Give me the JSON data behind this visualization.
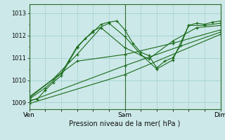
{
  "title": "",
  "xlabel": "Pression niveau de la mer( hPa )",
  "ylim": [
    1008.7,
    1013.4
  ],
  "yticks": [
    1009,
    1010,
    1011,
    1012,
    1013
  ],
  "xtick_labels": [
    "Ven",
    "Sam",
    "Dim"
  ],
  "xtick_positions": [
    0,
    48,
    96
  ],
  "x_total": 96,
  "bg_color": "#cce8e8",
  "grid_color": "#99cccc",
  "line_color": "#1a6b1a",
  "marker_color": "#1a6b1a",
  "lines": [
    [
      0,
      1009.1,
      4,
      1009.15,
      8,
      1009.55,
      12,
      1009.9,
      16,
      1010.2,
      20,
      1010.85,
      24,
      1011.45,
      28,
      1011.85,
      32,
      1012.15,
      36,
      1012.5,
      40,
      1012.6,
      44,
      1012.65,
      48,
      1012.25,
      52,
      1011.65,
      56,
      1011.25,
      60,
      1011.1,
      64,
      1010.55,
      68,
      1010.85,
      72,
      1011.0,
      76,
      1011.55,
      80,
      1012.45,
      84,
      1012.55,
      88,
      1012.5,
      92,
      1012.6,
      96,
      1012.65
    ],
    [
      0,
      1009.15,
      8,
      1009.65,
      16,
      1010.3,
      24,
      1011.5,
      32,
      1012.2,
      40,
      1012.55,
      48,
      1011.95,
      56,
      1011.15,
      64,
      1010.5,
      72,
      1010.9,
      80,
      1012.45,
      88,
      1012.45,
      96,
      1012.55
    ],
    [
      0,
      1009.2,
      12,
      1010.05,
      24,
      1011.15,
      36,
      1012.35,
      48,
      1011.45,
      60,
      1010.95,
      72,
      1011.75,
      84,
      1012.35,
      96,
      1012.45
    ],
    [
      0,
      1009.25,
      24,
      1010.85,
      48,
      1011.15,
      72,
      1011.65,
      96,
      1012.25
    ],
    [
      0,
      1009.05,
      48,
      1010.65,
      96,
      1012.15
    ],
    [
      0,
      1008.95,
      48,
      1010.25,
      96,
      1012.05
    ]
  ]
}
